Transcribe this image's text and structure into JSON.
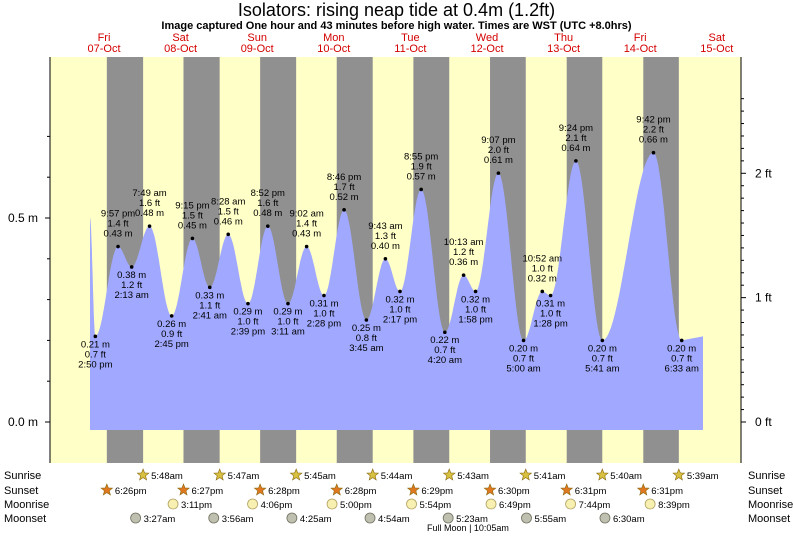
{
  "title": "Isolators: rising  neap tide at 0.4m (1.2ft)",
  "subtitle": "Image captured One hour and 43 minutes before high water. Times are WST (UTC +8.0hrs)",
  "chart_data": {
    "type": "area",
    "ylabel_left_unit": "m",
    "ylabel_right_unit": "ft",
    "y_ticks_m": [
      "0.0 m",
      "0.5 m"
    ],
    "y_ticks_ft": [
      "0 ft",
      "1 ft",
      "2 ft"
    ],
    "days": [
      {
        "dow": "Fri",
        "date": "07-Oct"
      },
      {
        "dow": "Sat",
        "date": "08-Oct"
      },
      {
        "dow": "Sun",
        "date": "09-Oct"
      },
      {
        "dow": "Mon",
        "date": "10-Oct"
      },
      {
        "dow": "Tue",
        "date": "11-Oct"
      },
      {
        "dow": "Wed",
        "date": "12-Oct"
      },
      {
        "dow": "Thu",
        "date": "13-Oct"
      },
      {
        "dow": "Fri",
        "date": "14-Oct"
      },
      {
        "dow": "Sat",
        "date": "15-Oct"
      }
    ],
    "tides": [
      {
        "time": "2:50 pm",
        "m": 0.21,
        "ft": "0.7 ft",
        "m_label": "0.21 m",
        "high": false
      },
      {
        "time": "9:57 pm",
        "m": 0.43,
        "ft": "1.4 ft",
        "m_label": "0.43 m",
        "high": true
      },
      {
        "time": "2:13 am",
        "m": 0.38,
        "ft": "1.2 ft",
        "m_label": "0.38 m",
        "high": false
      },
      {
        "time": "7:49 am",
        "m": 0.48,
        "ft": "1.6 ft",
        "m_label": "0.48 m",
        "high": true
      },
      {
        "time": "2:45 pm",
        "m": 0.26,
        "ft": "0.9 ft",
        "m_label": "0.26 m",
        "high": false
      },
      {
        "time": "9:15 pm",
        "m": 0.45,
        "ft": "1.5 ft",
        "m_label": "0.45 m",
        "high": true
      },
      {
        "time": "2:41 am",
        "m": 0.33,
        "ft": "1.1 ft",
        "m_label": "0.33 m",
        "high": false
      },
      {
        "time": "8:28 am",
        "m": 0.46,
        "ft": "1.5 ft",
        "m_label": "0.46 m",
        "high": true
      },
      {
        "time": "2:39 pm",
        "m": 0.29,
        "ft": "1.0 ft",
        "m_label": "0.29 m",
        "high": false
      },
      {
        "time": "8:52 pm",
        "m": 0.48,
        "ft": "1.6 ft",
        "m_label": "0.48 m",
        "high": true
      },
      {
        "time": "3:11 am",
        "m": 0.29,
        "ft": "1.0 ft",
        "m_label": "0.29 m",
        "high": false
      },
      {
        "time": "9:02 am",
        "m": 0.43,
        "ft": "1.4 ft",
        "m_label": "0.43 m",
        "high": true
      },
      {
        "time": "2:28 pm",
        "m": 0.31,
        "ft": "1.0 ft",
        "m_label": "0.31 m",
        "high": false
      },
      {
        "time": "8:46 pm",
        "m": 0.52,
        "ft": "1.7 ft",
        "m_label": "0.52 m",
        "high": true
      },
      {
        "time": "3:45 am",
        "m": 0.25,
        "ft": "0.8 ft",
        "m_label": "0.25 m",
        "high": false
      },
      {
        "time": "9:43 am",
        "m": 0.4,
        "ft": "1.3 ft",
        "m_label": "0.40 m",
        "high": true
      },
      {
        "time": "2:17 pm",
        "m": 0.32,
        "ft": "1.0 ft",
        "m_label": "0.32 m",
        "high": false
      },
      {
        "time": "8:55 pm",
        "m": 0.57,
        "ft": "1.9 ft",
        "m_label": "0.57 m",
        "high": true
      },
      {
        "time": "4:20 am",
        "m": 0.22,
        "ft": "0.7 ft",
        "m_label": "0.22 m",
        "high": false
      },
      {
        "time": "10:13 am",
        "m": 0.36,
        "ft": "1.2 ft",
        "m_label": "0.36 m",
        "high": true
      },
      {
        "time": "1:58 pm",
        "m": 0.32,
        "ft": "1.0 ft",
        "m_label": "0.32 m",
        "high": false
      },
      {
        "time": "9:07 pm",
        "m": 0.61,
        "ft": "2.0 ft",
        "m_label": "0.61 m",
        "high": true
      },
      {
        "time": "5:00 am",
        "m": 0.2,
        "ft": "0.7 ft",
        "m_label": "0.20 m",
        "high": false
      },
      {
        "time": "10:52 am",
        "m": 0.32,
        "ft": "1.0 ft",
        "m_label": "0.32 m",
        "high": true
      },
      {
        "time": "1:28 pm",
        "m": 0.31,
        "ft": "1.0 ft",
        "m_label": "0.31 m",
        "high": false
      },
      {
        "time": "9:24 pm",
        "m": 0.64,
        "ft": "2.1 ft",
        "m_label": "0.64 m",
        "high": true
      },
      {
        "time": "5:41 am",
        "m": 0.2,
        "ft": "0.7 ft",
        "m_label": "0.20 m",
        "high": false
      },
      {
        "time": "9:42 pm",
        "m": 0.66,
        "ft": "2.2 ft",
        "m_label": "0.66 m",
        "high": true
      },
      {
        "time": "6:33 am",
        "m": 0.2,
        "ft": "0.7 ft",
        "m_label": "0.20 m",
        "high": false
      }
    ],
    "sunrise": [
      "5:48am",
      "5:47am",
      "5:45am",
      "5:44am",
      "5:43am",
      "5:41am",
      "5:40am",
      "5:39am"
    ],
    "sunset": [
      "6:26pm",
      "6:27pm",
      "6:28pm",
      "6:28pm",
      "6:29pm",
      "6:30pm",
      "6:31pm",
      "6:31pm"
    ],
    "moonrise": [
      "3:11pm",
      "4:06pm",
      "5:00pm",
      "5:54pm",
      "6:49pm",
      "7:44pm",
      "8:39pm"
    ],
    "moonset": [
      "3:27am",
      "3:56am",
      "4:25am",
      "4:54am",
      "5:23am",
      "5:55am",
      "6:30am"
    ],
    "moon_phase_note": "Full Moon | 10:05am",
    "row_labels": {
      "sunrise": "Sunrise",
      "sunset": "Sunset",
      "moonrise": "Moonrise",
      "moonset": "Moonset"
    },
    "colors": {
      "water": "#a0a8ff",
      "day": "#ffffc8",
      "night": "#909090",
      "days_text": "#d40000",
      "sun_star": "#d8c040",
      "sunset_star": "#e07820"
    }
  }
}
